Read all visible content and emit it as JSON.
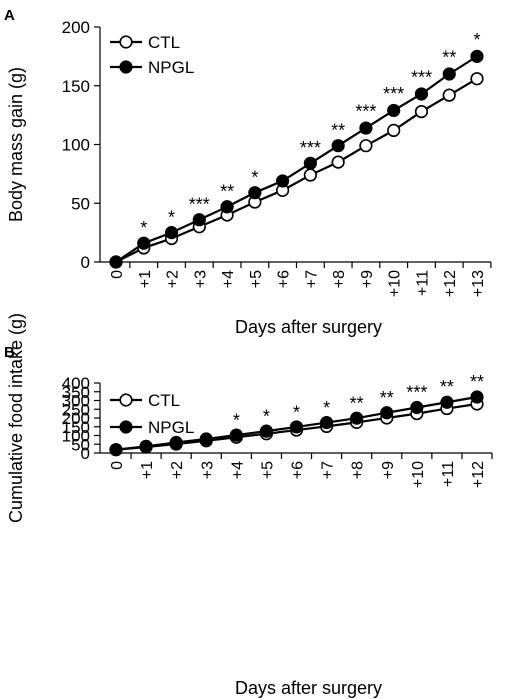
{
  "chart_data": [
    {
      "panel": "A",
      "type": "line",
      "xlabel": "Days after surgery",
      "ylabel": "Body mass gain (g)",
      "categories": [
        "0",
        "+1",
        "+2",
        "+3",
        "+4",
        "+5",
        "+6",
        "+7",
        "+8",
        "+9",
        "+10",
        "+11",
        "+12",
        "+13"
      ],
      "ylim": [
        0,
        200
      ],
      "yticks": [
        "0",
        "50",
        "100",
        "150",
        "200"
      ],
      "legend_position": "top-left",
      "series": [
        {
          "name": "CTL",
          "marker": "open-circle",
          "values": [
            0,
            12,
            20,
            30,
            40,
            51,
            61,
            74,
            85,
            99,
            112,
            128,
            142,
            156
          ],
          "error": [
            0,
            1,
            1,
            1,
            1,
            1,
            1,
            1,
            1,
            2,
            2,
            2,
            4,
            4
          ]
        },
        {
          "name": "NPGL",
          "marker": "filled-circle",
          "values": [
            0,
            16,
            25,
            36,
            47,
            59,
            69,
            84,
            99,
            114,
            129,
            143,
            160,
            175
          ],
          "error": [
            0,
            1,
            1,
            1,
            1,
            1,
            1,
            1,
            1,
            2,
            2,
            2,
            2,
            2
          ]
        }
      ],
      "annotations": [
        "",
        "*",
        "*",
        "***",
        "**",
        "*",
        "",
        "***",
        "**",
        "***",
        "***",
        "***",
        "**",
        "*"
      ]
    },
    {
      "panel": "B",
      "type": "line",
      "xlabel": "Days after surgery",
      "ylabel": "Cumulative food intake (g)",
      "categories": [
        "0",
        "+1",
        "+2",
        "+3",
        "+4",
        "+5",
        "+6",
        "+7",
        "+8",
        "+9",
        "+10",
        "+11",
        "+12"
      ],
      "ylim": [
        0,
        400
      ],
      "yticks": [
        "0",
        "50",
        "100",
        "150",
        "200",
        "250",
        "300",
        "350",
        "400"
      ],
      "legend_position": "top-left",
      "series": [
        {
          "name": "CTL",
          "marker": "open-circle",
          "values": [
            19,
            34,
            51,
            70,
            90,
            110,
            131,
            152,
            175,
            200,
            225,
            254,
            280
          ],
          "error": [
            2,
            2,
            2,
            2,
            3,
            3,
            3,
            4,
            4,
            5,
            6,
            7,
            8
          ]
        },
        {
          "name": "NPGL",
          "marker": "filled-circle",
          "values": [
            19,
            38,
            60,
            80,
            102,
            125,
            149,
            174,
            199,
            230,
            260,
            290,
            320
          ],
          "error": [
            2,
            2,
            2,
            2,
            3,
            3,
            3,
            4,
            4,
            5,
            5,
            6,
            7
          ]
        }
      ],
      "annotations": [
        "",
        "",
        "",
        "",
        "*",
        "*",
        "*",
        "*",
        "**",
        "**",
        "***",
        "**",
        "**"
      ]
    }
  ]
}
